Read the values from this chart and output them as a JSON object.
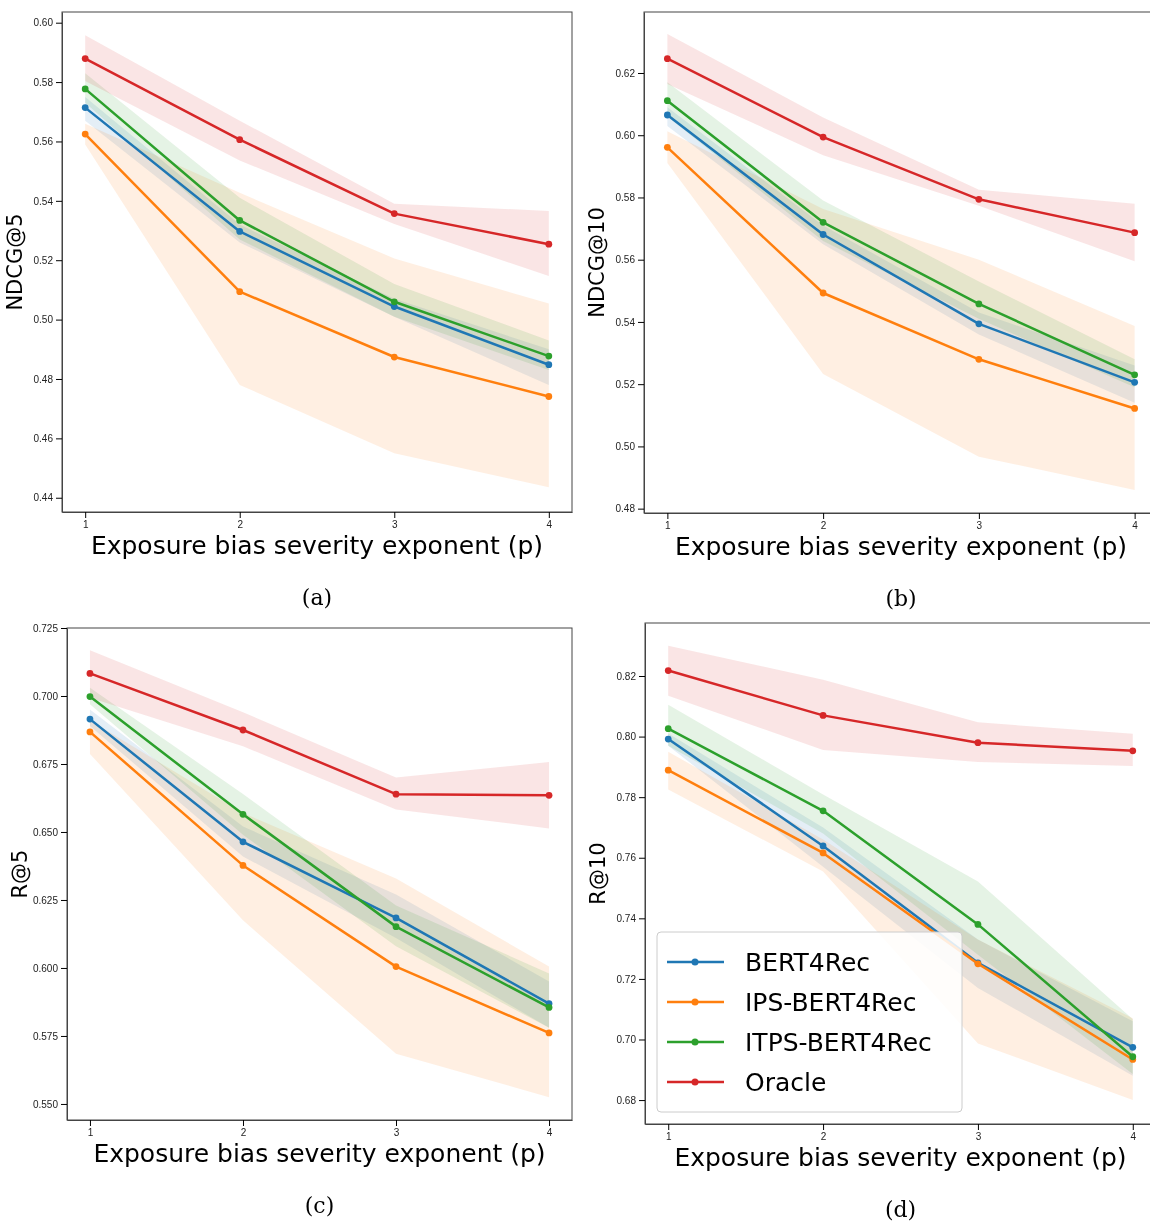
{
  "chart_data": [
    {
      "type": "line",
      "xlabel": "Exposure bias severity exponent (p)",
      "ylabel": "NDCG@5",
      "annotations": [
        "(a)"
      ],
      "x": [
        1,
        2,
        3,
        4
      ],
      "xlim": [
        0.85,
        4.15
      ],
      "xticks": [
        1,
        2,
        3,
        4
      ],
      "ylim": [
        0.4352,
        0.6036
      ],
      "yticks": [
        {
          "value": 0.44,
          "label": "0.44"
        },
        {
          "value": 0.46,
          "label": "0.46"
        },
        {
          "value": 0.48,
          "label": "0.48"
        },
        {
          "value": 0.5,
          "label": "0.50"
        },
        {
          "value": 0.52,
          "label": "0.52"
        },
        {
          "value": 0.54,
          "label": "0.54"
        },
        {
          "value": 0.56,
          "label": "0.56"
        },
        {
          "value": 0.58,
          "label": "0.58"
        },
        {
          "value": 0.6,
          "label": "0.60"
        }
      ],
      "marker": "circle",
      "line_style": "solid",
      "grid": false,
      "legend": false,
      "series": [
        {
          "color": "#1f77b4",
          "values": [
            0.5714,
            0.5297,
            0.5044,
            0.4848
          ],
          "lower": [
            0.567,
            0.526,
            0.501,
            0.478
          ],
          "upper": [
            0.575,
            0.532,
            0.507,
            0.49
          ]
        },
        {
          "color": "#ff7f0e",
          "values": [
            0.5625,
            0.5094,
            0.4874,
            0.4741
          ],
          "lower": [
            0.559,
            0.478,
            0.455,
            0.4435
          ],
          "upper": [
            0.566,
            0.5427,
            0.5206,
            0.5054
          ]
        },
        {
          "color": "#2ca02c",
          "values": [
            0.5777,
            0.5334,
            0.506,
            0.4877
          ],
          "lower": [
            0.573,
            0.527,
            0.501,
            0.483
          ],
          "upper": [
            0.583,
            0.541,
            0.512,
            0.493
          ]
        },
        {
          "color": "#d62728",
          "values": [
            0.5879,
            0.5606,
            0.5357,
            0.5254
          ],
          "lower": [
            0.5804,
            0.5536,
            0.5322,
            0.5147
          ],
          "upper": [
            0.5958,
            0.567,
            0.539,
            0.5366
          ]
        }
      ]
    },
    {
      "type": "line",
      "xlabel": "Exposure bias severity exponent (p)",
      "ylabel": "NDCG@10",
      "annotations": [
        "(b)"
      ],
      "x": [
        1,
        2,
        3,
        4
      ],
      "xlim": [
        0.85,
        4.15
      ],
      "xticks": [
        1,
        2,
        3,
        4
      ],
      "ylim": [
        0.4786,
        0.6396
      ],
      "yticks": [
        {
          "value": 0.48,
          "label": "0.48"
        },
        {
          "value": 0.5,
          "label": "0.50"
        },
        {
          "value": 0.52,
          "label": "0.52"
        },
        {
          "value": 0.54,
          "label": "0.54"
        },
        {
          "value": 0.56,
          "label": "0.56"
        },
        {
          "value": 0.58,
          "label": "0.58"
        },
        {
          "value": 0.6,
          "label": "0.60"
        },
        {
          "value": 0.62,
          "label": "0.62"
        }
      ],
      "marker": "circle",
      "line_style": "solid",
      "grid": false,
      "legend": false,
      "series": [
        {
          "color": "#1f77b4",
          "values": [
            0.6065,
            0.5681,
            0.5394,
            0.5206
          ],
          "lower": [
            0.603,
            0.565,
            0.536,
            0.514
          ],
          "upper": [
            0.609,
            0.571,
            0.543,
            0.526
          ]
        },
        {
          "color": "#ff7f0e",
          "values": [
            0.5961,
            0.5493,
            0.528,
            0.5122
          ],
          "lower": [
            0.5911,
            0.5233,
            0.4967,
            0.486
          ],
          "upper": [
            0.6013,
            0.5763,
            0.56,
            0.5387
          ]
        },
        {
          "color": "#2ca02c",
          "values": [
            0.6111,
            0.572,
            0.5458,
            0.523
          ],
          "lower": [
            0.606,
            0.566,
            0.541,
            0.519
          ],
          "upper": [
            0.617,
            0.579,
            0.553,
            0.528
          ]
        },
        {
          "color": "#d62728",
          "values": [
            0.6246,
            0.5994,
            0.5794,
            0.5687
          ],
          "lower": [
            0.6165,
            0.5936,
            0.5773,
            0.5595
          ],
          "upper": [
            0.6325,
            0.6057,
            0.5825,
            0.578
          ]
        }
      ]
    },
    {
      "type": "line",
      "xlabel": "Exposure bias severity exponent (p)",
      "ylabel": "R@5",
      "annotations": [
        "(c)"
      ],
      "x": [
        1,
        2,
        3,
        4
      ],
      "xlim": [
        0.85,
        4.15
      ],
      "xticks": [
        1,
        2,
        3,
        4
      ],
      "ylim": [
        0.5441,
        0.725
      ],
      "yticks": [
        {
          "value": 0.55,
          "label": "0.550"
        },
        {
          "value": 0.575,
          "label": "0.575"
        },
        {
          "value": 0.6,
          "label": "0.600"
        },
        {
          "value": 0.625,
          "label": "0.625"
        },
        {
          "value": 0.65,
          "label": "0.650"
        },
        {
          "value": 0.675,
          "label": "0.675"
        },
        {
          "value": 0.7,
          "label": "0.700"
        },
        {
          "value": 0.725,
          "label": "0.725"
        }
      ],
      "marker": "circle",
      "line_style": "solid",
      "grid": false,
      "legend": false,
      "series": [
        {
          "color": "#1f77b4",
          "values": [
            0.6915,
            0.6464,
            0.6184,
            0.5869
          ],
          "lower": [
            0.689,
            0.641,
            0.611,
            0.578
          ],
          "upper": [
            0.695,
            0.652,
            0.627,
            0.595
          ]
        },
        {
          "color": "#ff7f0e",
          "values": [
            0.6868,
            0.6377,
            0.6005,
            0.5761
          ],
          "lower": [
            0.6787,
            0.6175,
            0.5685,
            0.5525
          ],
          "upper": [
            0.691,
            0.657,
            0.6329,
            0.6005
          ]
        },
        {
          "color": "#2ca02c",
          "values": [
            0.6998,
            0.6565,
            0.6152,
            0.5855
          ],
          "lower": [
            0.697,
            0.649,
            0.608,
            0.578
          ],
          "upper": [
            0.703,
            0.664,
            0.623,
            0.598
          ]
        },
        {
          "color": "#d62728",
          "values": [
            0.7083,
            0.6875,
            0.6639,
            0.6635
          ],
          "lower": [
            0.6994,
            0.6815,
            0.6583,
            0.6513
          ],
          "upper": [
            0.7168,
            0.694,
            0.67,
            0.6757
          ]
        }
      ]
    },
    {
      "type": "line",
      "xlabel": "Exposure bias severity exponent (p)",
      "ylabel": "R@10",
      "annotations": [
        "(d)"
      ],
      "x": [
        1,
        2,
        3,
        4
      ],
      "xlim": [
        0.85,
        4.15
      ],
      "xticks": [
        1,
        2,
        3,
        4
      ],
      "ylim": [
        0.6721,
        0.8375
      ],
      "yticks": [
        {
          "value": 0.68,
          "label": "0.68"
        },
        {
          "value": 0.7,
          "label": "0.70"
        },
        {
          "value": 0.72,
          "label": "0.72"
        },
        {
          "value": 0.74,
          "label": "0.74"
        },
        {
          "value": 0.76,
          "label": "0.76"
        },
        {
          "value": 0.78,
          "label": "0.78"
        },
        {
          "value": 0.8,
          "label": "0.80"
        },
        {
          "value": 0.82,
          "label": "0.82"
        }
      ],
      "marker": "circle",
      "line_style": "solid",
      "grid": false,
      "legend": "bottom left",
      "series": [
        {
          "name": "BERT4Rec",
          "color": "#1f77b4",
          "values": [
            0.7992,
            0.7639,
            0.7253,
            0.6974
          ],
          "lower": [
            0.797,
            0.757,
            0.717,
            0.688
          ],
          "upper": [
            0.801,
            0.77,
            0.733,
            0.706
          ]
        },
        {
          "name": "IPS-BERT4Rec",
          "color": "#ff7f0e",
          "values": [
            0.7889,
            0.7616,
            0.725,
            0.6934
          ],
          "lower": [
            0.7825,
            0.7555,
            0.6987,
            0.68
          ],
          "upper": [
            0.795,
            0.766,
            0.733,
            0.707
          ]
        },
        {
          "name": "ITPS-BERT4Rec",
          "color": "#2ca02c",
          "values": [
            0.8026,
            0.7755,
            0.738,
            0.6943
          ],
          "lower": [
            0.797,
            0.768,
            0.728,
            0.6886
          ],
          "upper": [
            0.8105,
            0.7809,
            0.7522,
            0.7067
          ]
        },
        {
          "name": "Oracle",
          "color": "#d62728",
          "values": [
            0.8218,
            0.807,
            0.798,
            0.7953
          ],
          "lower": [
            0.8135,
            0.7956,
            0.7916,
            0.7903
          ],
          "upper": [
            0.83,
            0.8188,
            0.8047,
            0.8009
          ]
        }
      ]
    }
  ]
}
